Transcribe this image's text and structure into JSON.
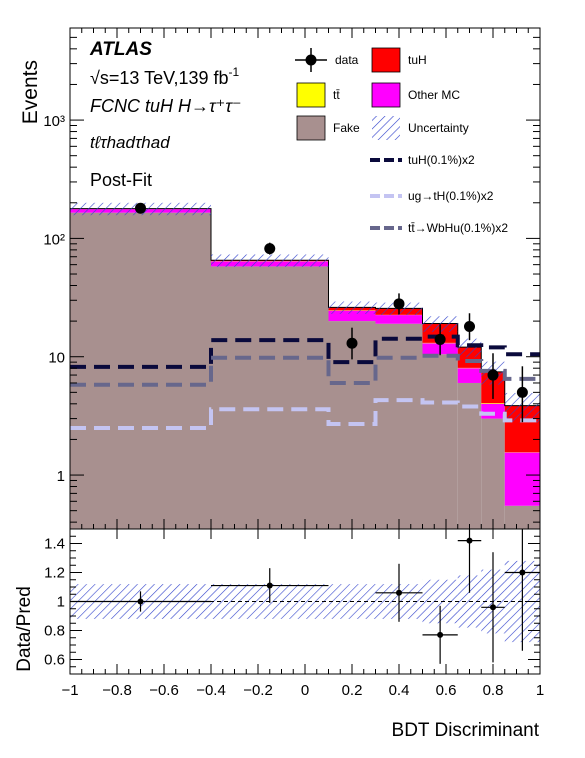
{
  "chart_data": [
    {
      "type": "histogram",
      "panel": "main",
      "experiment": "ATLAS",
      "energy_label": "√s=13 TeV,139 fb",
      "energy_sup": "-1",
      "process_label": "FCNC tuH H→τ⁺τ⁻",
      "channel_label": "tℓτhadτhad",
      "fit_label": "Post-Fit",
      "ylabel": "Events",
      "ylog": true,
      "ylim": [
        0.35,
        6000
      ],
      "xlim": [
        -1,
        1
      ],
      "y_tick_labels": [
        "1",
        "10",
        "10²",
        "10³"
      ],
      "bin_edges": [
        -1,
        -0.4,
        0.1,
        0.3,
        0.5,
        0.65,
        0.75,
        0.85,
        1.0
      ],
      "stack": [
        {
          "name": "Fake",
          "color": "#a8908f",
          "values": [
            165,
            58,
            20,
            19,
            10.5,
            6,
            3,
            0.55
          ]
        },
        {
          "name": "Other MC",
          "color": "#ff00ff",
          "values": [
            12,
            6,
            4.5,
            3.5,
            2.5,
            2,
            1,
            1.0
          ]
        },
        {
          "name": "tt̄",
          "color": "#ffff00",
          "values": [
            0.5,
            0.3,
            0.15,
            0.1,
            0.1,
            0.05,
            0.05,
            0.01
          ]
        },
        {
          "name": "tuH",
          "color": "#ff0000",
          "values": [
            1,
            1,
            1.5,
            3,
            6,
            4,
            3.4,
            2.3
          ]
        }
      ],
      "uncertainty": {
        "name": "Uncertainty",
        "color": "#3344cc",
        "rel": [
          0.12,
          0.12,
          0.12,
          0.12,
          0.15,
          0.18,
          0.22,
          0.28
        ]
      },
      "signal_lines": [
        {
          "name": "tuH(0.1%)x2",
          "color": "#0a0a3c",
          "values": [
            8.2,
            13.8,
            9.0,
            14.2,
            14.8,
            12.5,
            12.0,
            10.5
          ]
        },
        {
          "name": "ug→tH(0.1%)x2",
          "color": "#c4c4f2",
          "values": [
            2.5,
            3.6,
            2.7,
            4.3,
            4.1,
            3.8,
            3.3,
            2.9
          ]
        },
        {
          "name": "tt̄→WbHu(0.1%)x2",
          "color": "#67678c",
          "values": [
            5.8,
            9.8,
            6.0,
            9.8,
            10.2,
            9.2,
            7.6,
            6.5
          ]
        }
      ],
      "data": {
        "name": "data",
        "x": [
          -0.7,
          -0.15,
          0.2,
          0.4,
          0.575,
          0.7,
          0.8,
          0.925
        ],
        "y": [
          180,
          82,
          13,
          28,
          14,
          18,
          7,
          5
        ],
        "yerr_low": [
          13,
          9,
          3.5,
          5.2,
          3.7,
          4.2,
          2.6,
          2.2
        ],
        "yerr_high": [
          14,
          10,
          4.6,
          6.3,
          4.8,
          5.3,
          3.7,
          3.3
        ]
      },
      "legend": [
        {
          "label": "data",
          "style": "marker"
        },
        {
          "label": "tuH",
          "style": "box",
          "color": "#ff0000"
        },
        {
          "label": "tt̄",
          "style": "box",
          "color": "#ffff00"
        },
        {
          "label": "Other MC",
          "style": "box",
          "color": "#ff00ff"
        },
        {
          "label": "Fake",
          "style": "box",
          "color": "#a8908f"
        },
        {
          "label": "Uncertainty",
          "style": "hatch",
          "color": "#3344cc"
        },
        {
          "label": "tuH(0.1%)x2",
          "style": "line",
          "color": "#0a0a3c"
        },
        {
          "label": "ug→tH(0.1%)x2",
          "style": "line",
          "color": "#c4c4f2"
        },
        {
          "label": "tt̄→WbHu(0.1%)x2",
          "style": "line",
          "color": "#67678c"
        }
      ]
    },
    {
      "type": "ratio",
      "panel": "ratio",
      "ylabel": "Data/Pred",
      "xlabel": "BDT Discriminant",
      "ylim": [
        0.5,
        1.5
      ],
      "y_ticks": [
        0.6,
        0.8,
        1,
        1.2,
        1.4
      ],
      "y_tick_labels": [
        "0.6",
        "0.8",
        "1",
        "1.2",
        "1.4"
      ],
      "x_ticks": [
        -1,
        -0.8,
        -0.6,
        -0.4,
        -0.2,
        0,
        0.2,
        0.4,
        0.6,
        0.8,
        1
      ],
      "x_tick_labels": [
        "−1",
        "−0.8",
        "−0.6",
        "−0.4",
        "−0.2",
        "0",
        "0.2",
        "0.4",
        "0.6",
        "0.8",
        "1"
      ],
      "bin_edges": [
        -1,
        -0.4,
        0.1,
        0.3,
        0.5,
        0.65,
        0.75,
        0.85,
        1.0
      ],
      "uncertainty_rel": [
        0.12,
        0.12,
        0.12,
        0.12,
        0.15,
        0.18,
        0.22,
        0.28
      ],
      "points": [
        {
          "x": -0.7,
          "xerr": 0.3,
          "y": 1.0,
          "yerr": 0.07
        },
        {
          "x": -0.15,
          "xerr": 0.25,
          "y": 1.11,
          "yerr": 0.12
        },
        {
          "x": 0.4,
          "xerr": 0.1,
          "y": 1.06,
          "yerr": 0.2
        },
        {
          "x": 0.575,
          "xerr": 0.075,
          "y": 0.77,
          "yerr": 0.2
        },
        {
          "x": 0.7,
          "xerr": 0.05,
          "y": 1.42,
          "yerr": 0.36
        },
        {
          "x": 0.8,
          "xerr": 0.05,
          "y": 0.96,
          "yerr": 0.38
        },
        {
          "x": 0.925,
          "xerr": 0.075,
          "y": 1.2,
          "yerr": 0.54
        }
      ]
    }
  ]
}
